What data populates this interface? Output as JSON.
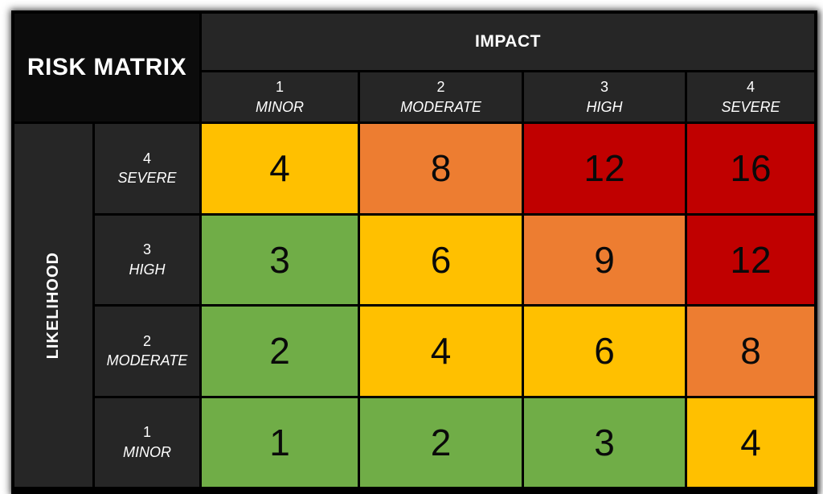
{
  "title": "RISK MATRIX",
  "axes": {
    "impact": {
      "label": "IMPACT",
      "levels": [
        {
          "value": "1",
          "name": "MINOR"
        },
        {
          "value": "2",
          "name": "MODERATE"
        },
        {
          "value": "3",
          "name": "HIGH"
        },
        {
          "value": "4",
          "name": "SEVERE"
        }
      ]
    },
    "likelihood": {
      "label": "LIKELIHOOD",
      "levels": [
        {
          "value": "4",
          "name": "SEVERE"
        },
        {
          "value": "3",
          "name": "HIGH"
        },
        {
          "value": "2",
          "name": "MODERATE"
        },
        {
          "value": "1",
          "name": "MINOR"
        }
      ]
    }
  },
  "colors": {
    "green": "#70AD47",
    "yellow": "#FFC000",
    "orange": "#ED7D31",
    "red": "#C00000",
    "header_bg": "#262626",
    "title_bg": "#0C0C0C",
    "grid_line": "#000000",
    "header_text": "#FFFFFF",
    "score_text": "#0A0A0A"
  },
  "matrix": {
    "rows": [
      {
        "likelihood_value": "4",
        "likelihood_name": "SEVERE",
        "cells": [
          {
            "score": "4",
            "color": "#FFC000"
          },
          {
            "score": "8",
            "color": "#ED7D31"
          },
          {
            "score": "12",
            "color": "#C00000"
          },
          {
            "score": "16",
            "color": "#C00000"
          }
        ]
      },
      {
        "likelihood_value": "3",
        "likelihood_name": "HIGH",
        "cells": [
          {
            "score": "3",
            "color": "#70AD47"
          },
          {
            "score": "6",
            "color": "#FFC000"
          },
          {
            "score": "9",
            "color": "#ED7D31"
          },
          {
            "score": "12",
            "color": "#C00000"
          }
        ]
      },
      {
        "likelihood_value": "2",
        "likelihood_name": "MODERATE",
        "cells": [
          {
            "score": "2",
            "color": "#70AD47"
          },
          {
            "score": "4",
            "color": "#FFC000"
          },
          {
            "score": "6",
            "color": "#FFC000"
          },
          {
            "score": "8",
            "color": "#ED7D31"
          }
        ]
      },
      {
        "likelihood_value": "1",
        "likelihood_name": "MINOR",
        "cells": [
          {
            "score": "1",
            "color": "#70AD47"
          },
          {
            "score": "2",
            "color": "#70AD47"
          },
          {
            "score": "3",
            "color": "#70AD47"
          },
          {
            "score": "4",
            "color": "#FFC000"
          }
        ]
      }
    ]
  },
  "chart_data": {
    "type": "heatmap",
    "title": "RISK MATRIX",
    "xlabel": "IMPACT",
    "ylabel": "LIKELIHOOD",
    "x_categories": [
      "1 MINOR",
      "2 MODERATE",
      "3 HIGH",
      "4 SEVERE"
    ],
    "y_categories": [
      "4 SEVERE",
      "3 HIGH",
      "2 MODERATE",
      "1 MINOR"
    ],
    "values": [
      [
        4,
        8,
        12,
        16
      ],
      [
        3,
        6,
        9,
        12
      ],
      [
        2,
        4,
        6,
        8
      ],
      [
        1,
        2,
        3,
        4
      ]
    ],
    "cell_colors": [
      [
        "#FFC000",
        "#ED7D31",
        "#C00000",
        "#C00000"
      ],
      [
        "#70AD47",
        "#FFC000",
        "#ED7D31",
        "#C00000"
      ],
      [
        "#70AD47",
        "#FFC000",
        "#FFC000",
        "#ED7D31"
      ],
      [
        "#70AD47",
        "#70AD47",
        "#70AD47",
        "#FFC000"
      ]
    ],
    "legend": "none",
    "grid": "black cell borders"
  }
}
